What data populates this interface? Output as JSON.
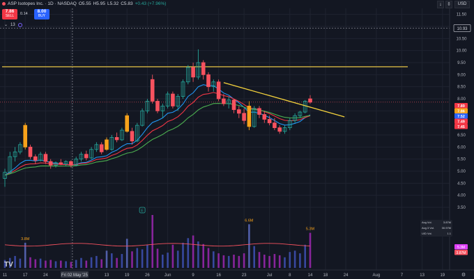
{
  "header": {
    "symbol": "ASP Isotopes Inc. · 1D · NASDAQ",
    "open": "O5.55",
    "high": "H5.95",
    "low": "L5.32",
    "close": "C5.83",
    "change": "+0.43 (+7.96%)"
  },
  "trade": {
    "sell_price": "7.86",
    "sell_label": "SELL",
    "spread": "0.14",
    "buy_price": "8.00",
    "buy_label": "BUY"
  },
  "indicator_label": "13",
  "currency": "USD",
  "volume_legend": {
    "avg_vol_label": "Avg Vol.",
    "avg_vol": "3.87M",
    "avg3_label": "Avg 3 Vol.",
    "avg3": "30.97M",
    "uvol_label": "U/D Vol.",
    "uvol": "1.1"
  },
  "colors": {
    "up": "#26a69a",
    "down": "#f7525f",
    "highlight": "#f7a21b",
    "resistance": "#d4b542",
    "trendline": "#f5d33c",
    "ema_fast": "#2196f3",
    "ema_mid": "#f23645",
    "ema_slow": "#4caf50"
  },
  "chart_data": {
    "type": "candlestick",
    "ylim": [
      3.5,
      11.75
    ],
    "y_ticks": [
      11.5,
      11.0,
      10.5,
      10.0,
      9.5,
      9.0,
      8.5,
      8.0,
      7.5,
      7.0,
      6.5,
      6.0,
      5.5,
      5.0,
      4.5,
      4.0,
      3.5
    ],
    "x_tick_labels": [
      {
        "label": "11",
        "i": 0
      },
      {
        "label": "17",
        "i": 4
      },
      {
        "label": "24",
        "i": 8
      },
      {
        "label": "Fri 02 May '25",
        "i": 13
      },
      {
        "label": "13",
        "i": 20
      },
      {
        "label": "19",
        "i": 24
      },
      {
        "label": "26",
        "i": 28
      },
      {
        "label": "Jun",
        "i": 32
      },
      {
        "label": "9",
        "i": 37
      },
      {
        "label": "16",
        "i": 42
      },
      {
        "label": "23",
        "i": 47
      },
      {
        "label": "Jul",
        "i": 52
      },
      {
        "label": "8",
        "i": 56
      },
      {
        "label": "14",
        "i": 60
      },
      {
        "label": "18",
        "i": 63
      },
      {
        "label": "24",
        "i": 67
      },
      {
        "label": "Aug",
        "i": 73
      },
      {
        "label": "7",
        "i": 78
      },
      {
        "label": "13",
        "i": 82
      },
      {
        "label": "19",
        "i": 86
      }
    ],
    "crosshair_price": "10.93",
    "right_price_labels": [
      {
        "text": "7.89",
        "color": "#f23645"
      },
      {
        "text": "7.86",
        "color": "#f7a21b"
      },
      {
        "text": "7.52",
        "color": "#2962ff"
      },
      {
        "text": "7.49",
        "color": "#f23645"
      },
      {
        "text": "7.45",
        "color": "#f23645"
      }
    ],
    "resistance_level": 9.33,
    "trendline": {
      "from": {
        "i": 43,
        "y": 8.67
      },
      "to": {
        "i": 64,
        "y": 7.4
      }
    },
    "candles": [
      {
        "o": 4.7,
        "h": 5.1,
        "l": 4.35,
        "c": 4.95,
        "v": 1.2
      },
      {
        "o": 4.95,
        "h": 5.8,
        "l": 4.9,
        "c": 5.6,
        "v": 1.5
      },
      {
        "o": 5.6,
        "h": 6.0,
        "l": 5.4,
        "c": 5.8,
        "v": 1.8
      },
      {
        "o": 5.8,
        "h": 6.2,
        "l": 5.7,
        "c": 6.1,
        "v": 1.4
      },
      {
        "o": 6.9,
        "h": 7.0,
        "l": 5.9,
        "c": 6.0,
        "v": 3.8,
        "hl": true
      },
      {
        "o": 6.0,
        "h": 6.1,
        "l": 5.5,
        "c": 5.6,
        "v": 1.6
      },
      {
        "o": 5.6,
        "h": 5.7,
        "l": 5.3,
        "c": 5.45,
        "v": 1.3
      },
      {
        "o": 5.45,
        "h": 5.8,
        "l": 5.4,
        "c": 5.7,
        "v": 1.4
      },
      {
        "o": 5.7,
        "h": 5.8,
        "l": 5.3,
        "c": 5.4,
        "v": 1.1
      },
      {
        "o": 5.4,
        "h": 5.5,
        "l": 5.1,
        "c": 5.25,
        "v": 1.2
      },
      {
        "o": 5.25,
        "h": 5.4,
        "l": 5.15,
        "c": 5.35,
        "v": 1.0
      },
      {
        "o": 5.35,
        "h": 5.5,
        "l": 5.25,
        "c": 5.3,
        "v": 1.1
      },
      {
        "o": 5.3,
        "h": 5.45,
        "l": 5.2,
        "c": 5.4,
        "v": 1.0
      },
      {
        "o": 5.4,
        "h": 5.45,
        "l": 5.15,
        "c": 5.25,
        "v": 0.9
      },
      {
        "o": 5.25,
        "h": 5.6,
        "l": 5.2,
        "c": 5.5,
        "v": 1.2
      },
      {
        "o": 5.5,
        "h": 5.8,
        "l": 5.4,
        "c": 5.7,
        "v": 1.5
      },
      {
        "o": 5.7,
        "h": 5.85,
        "l": 5.45,
        "c": 5.55,
        "v": 1.1
      },
      {
        "o": 5.55,
        "h": 6.0,
        "l": 5.5,
        "c": 5.9,
        "v": 1.6
      },
      {
        "o": 5.9,
        "h": 6.2,
        "l": 5.8,
        "c": 6.1,
        "v": 1.8
      },
      {
        "o": 6.1,
        "h": 6.2,
        "l": 5.7,
        "c": 5.8,
        "v": 1.3
      },
      {
        "o": 6.3,
        "h": 6.4,
        "l": 5.85,
        "c": 5.9,
        "v": 2.6,
        "hl": true
      },
      {
        "o": 5.9,
        "h": 6.5,
        "l": 5.85,
        "c": 6.4,
        "v": 2.2
      },
      {
        "o": 6.4,
        "h": 6.6,
        "l": 6.2,
        "c": 6.3,
        "v": 1.5
      },
      {
        "o": 6.3,
        "h": 6.8,
        "l": 6.25,
        "c": 6.7,
        "v": 2.1
      },
      {
        "o": 7.3,
        "h": 7.4,
        "l": 6.6,
        "c": 6.65,
        "v": 4.4,
        "hl": true
      },
      {
        "o": 6.65,
        "h": 6.8,
        "l": 6.1,
        "c": 6.25,
        "v": 2.5
      },
      {
        "o": 6.25,
        "h": 7.0,
        "l": 6.2,
        "c": 6.9,
        "v": 3.0
      },
      {
        "o": 6.9,
        "h": 7.6,
        "l": 6.85,
        "c": 7.5,
        "v": 2.8
      },
      {
        "o": 7.5,
        "h": 8.0,
        "l": 7.4,
        "c": 7.9,
        "v": 3.5
      },
      {
        "o": 8.8,
        "h": 9.0,
        "l": 7.8,
        "c": 7.9,
        "v": 8.0
      },
      {
        "o": 7.9,
        "h": 8.0,
        "l": 7.4,
        "c": 7.5,
        "v": 2.9
      },
      {
        "o": 7.5,
        "h": 7.8,
        "l": 7.2,
        "c": 7.7,
        "v": 2.0
      },
      {
        "o": 7.7,
        "h": 8.3,
        "l": 7.6,
        "c": 8.2,
        "v": 2.3
      },
      {
        "o": 8.2,
        "h": 8.3,
        "l": 7.6,
        "c": 7.7,
        "v": 3.5
      },
      {
        "o": 7.7,
        "h": 8.2,
        "l": 7.5,
        "c": 8.1,
        "v": 2.6
      },
      {
        "o": 8.1,
        "h": 8.8,
        "l": 8.0,
        "c": 8.7,
        "v": 3.8
      },
      {
        "o": 8.7,
        "h": 9.4,
        "l": 8.6,
        "c": 9.3,
        "v": 4.5
      },
      {
        "o": 9.3,
        "h": 9.5,
        "l": 8.7,
        "c": 8.9,
        "v": 4.9
      },
      {
        "o": 8.9,
        "h": 10.05,
        "l": 8.8,
        "c": 9.5,
        "v": 4.0
      },
      {
        "o": 9.5,
        "h": 9.6,
        "l": 8.8,
        "c": 9.0,
        "v": 3.6
      },
      {
        "o": 9.0,
        "h": 9.1,
        "l": 8.3,
        "c": 8.5,
        "v": 3.0
      },
      {
        "o": 8.5,
        "h": 8.8,
        "l": 8.3,
        "c": 8.7,
        "v": 2.5
      },
      {
        "o": 8.7,
        "h": 8.8,
        "l": 7.9,
        "c": 8.0,
        "v": 2.2
      },
      {
        "o": 8.0,
        "h": 8.2,
        "l": 7.7,
        "c": 7.8,
        "v": 1.9
      },
      {
        "o": 7.8,
        "h": 8.1,
        "l": 7.6,
        "c": 7.95,
        "v": 1.8
      },
      {
        "o": 7.95,
        "h": 8.0,
        "l": 7.4,
        "c": 7.55,
        "v": 2.0
      },
      {
        "o": 7.55,
        "h": 7.7,
        "l": 7.2,
        "c": 7.4,
        "v": 1.8
      },
      {
        "o": 7.4,
        "h": 7.6,
        "l": 6.95,
        "c": 7.1,
        "v": 2.2
      },
      {
        "o": 7.7,
        "h": 7.9,
        "l": 6.7,
        "c": 6.85,
        "v": 6.6,
        "hl": true
      },
      {
        "o": 6.85,
        "h": 7.7,
        "l": 6.8,
        "c": 7.6,
        "v": 3.3
      },
      {
        "o": 7.6,
        "h": 7.7,
        "l": 7.2,
        "c": 7.35,
        "v": 2.4
      },
      {
        "o": 7.35,
        "h": 7.5,
        "l": 7.0,
        "c": 7.15,
        "v": 2.0
      },
      {
        "o": 7.15,
        "h": 7.3,
        "l": 6.9,
        "c": 7.0,
        "v": 1.8
      },
      {
        "o": 7.0,
        "h": 7.2,
        "l": 6.7,
        "c": 6.8,
        "v": 2.1
      },
      {
        "o": 6.8,
        "h": 6.9,
        "l": 6.55,
        "c": 6.65,
        "v": 1.9
      },
      {
        "o": 6.65,
        "h": 6.9,
        "l": 6.55,
        "c": 6.8,
        "v": 1.6
      },
      {
        "o": 6.8,
        "h": 7.2,
        "l": 6.7,
        "c": 7.1,
        "v": 2.4
      },
      {
        "o": 7.1,
        "h": 7.4,
        "l": 7.0,
        "c": 7.3,
        "v": 2.6
      },
      {
        "o": 7.3,
        "h": 7.5,
        "l": 7.2,
        "c": 7.45,
        "v": 2.2
      },
      {
        "o": 7.45,
        "h": 7.95,
        "l": 7.4,
        "c": 7.9,
        "v": 3.5
      },
      {
        "o": 8.0,
        "h": 8.15,
        "l": 7.8,
        "c": 7.86,
        "v": 5.3
      }
    ],
    "volume_labels": [
      {
        "i": 4,
        "text": "3.8M",
        "color": "#f7a21b"
      },
      {
        "i": 48,
        "text": "6.6M",
        "color": "#f7a21b"
      },
      {
        "i": 60,
        "text": "5.3M",
        "color": "#f7a21b"
      }
    ],
    "volume_right_labels": [
      {
        "text": "5.3M",
        "color": "#e040fb"
      },
      {
        "text": "3.87M",
        "color": "#f7525f"
      }
    ],
    "event_marker": "E"
  }
}
